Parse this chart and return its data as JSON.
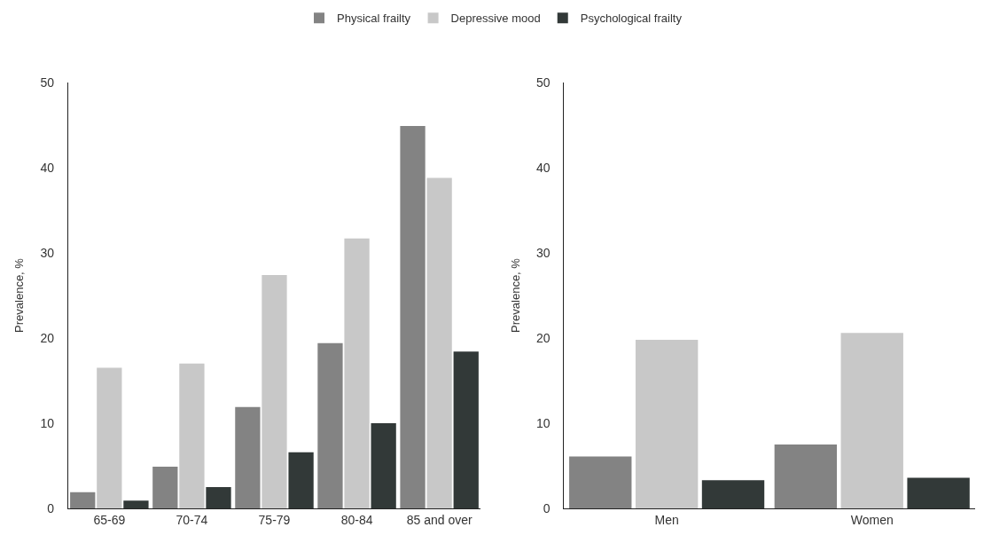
{
  "chart_data": [
    {
      "type": "bar",
      "ylabel": "Prevalence, %",
      "categories": [
        "65-69",
        "70-74",
        "75-79",
        "80-84",
        "85 and over"
      ],
      "ylim": [
        0,
        50
      ],
      "yticks": [
        0,
        10,
        20,
        30,
        40,
        50
      ],
      "legend": "top",
      "series": [
        {
          "name": "Physical frailty",
          "color": "#838383",
          "values": [
            1.9,
            4.9,
            11.9,
            19.4,
            44.9
          ]
        },
        {
          "name": "Depressive mood",
          "color": "#c8c8c8",
          "values": [
            16.5,
            17.0,
            27.4,
            31.7,
            38.8
          ]
        },
        {
          "name": "Psychological frailty",
          "color": "#323938",
          "values": [
            0.9,
            2.5,
            6.6,
            10.0,
            18.4
          ]
        }
      ]
    },
    {
      "type": "bar",
      "ylabel": "Prevalence, %",
      "categories": [
        "Men",
        "Women"
      ],
      "ylim": [
        0,
        50
      ],
      "yticks": [
        0,
        10,
        20,
        30,
        40,
        50
      ],
      "series": [
        {
          "color": "#838383",
          "values": [
            6.1,
            7.5
          ]
        },
        {
          "color": "#c8c8c8",
          "values": [
            19.8,
            20.6
          ]
        },
        {
          "color": "#323938",
          "values": [
            3.3,
            3.6
          ]
        }
      ]
    }
  ]
}
